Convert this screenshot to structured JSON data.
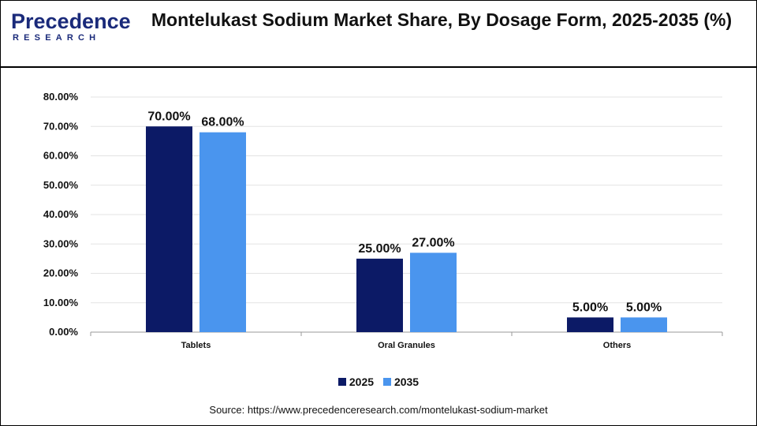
{
  "logo": {
    "word": "Precedence",
    "sub": "RESEARCH"
  },
  "chart_data": {
    "type": "bar",
    "title": "Montelukast Sodium Market Share, By Dosage Form, 2025-2035 (%)",
    "categories": [
      "Tablets",
      "Oral Granules",
      "Others"
    ],
    "series": [
      {
        "name": "2025",
        "values": [
          70,
          25,
          5
        ],
        "color": "#0c1a66"
      },
      {
        "name": "2035",
        "values": [
          68,
          27,
          5
        ],
        "color": "#4a95ee"
      }
    ],
    "data_labels": [
      [
        "70.00%",
        "25.00%",
        "5.00%"
      ],
      [
        "68.00%",
        "27.00%",
        "5.00%"
      ]
    ],
    "ylim": [
      0,
      80
    ],
    "yticks": [
      0,
      10,
      20,
      30,
      40,
      50,
      60,
      70,
      80
    ],
    "ytick_labels": [
      "0.00%",
      "10.00%",
      "20.00%",
      "30.00%",
      "40.00%",
      "50.00%",
      "60.00%",
      "70.00%",
      "80.00%"
    ],
    "xlabel": "",
    "ylabel": "",
    "grid": true,
    "legend_position": "bottom"
  },
  "source": "Source: https://www.precedenceresearch.com/montelukast-sodium-market"
}
